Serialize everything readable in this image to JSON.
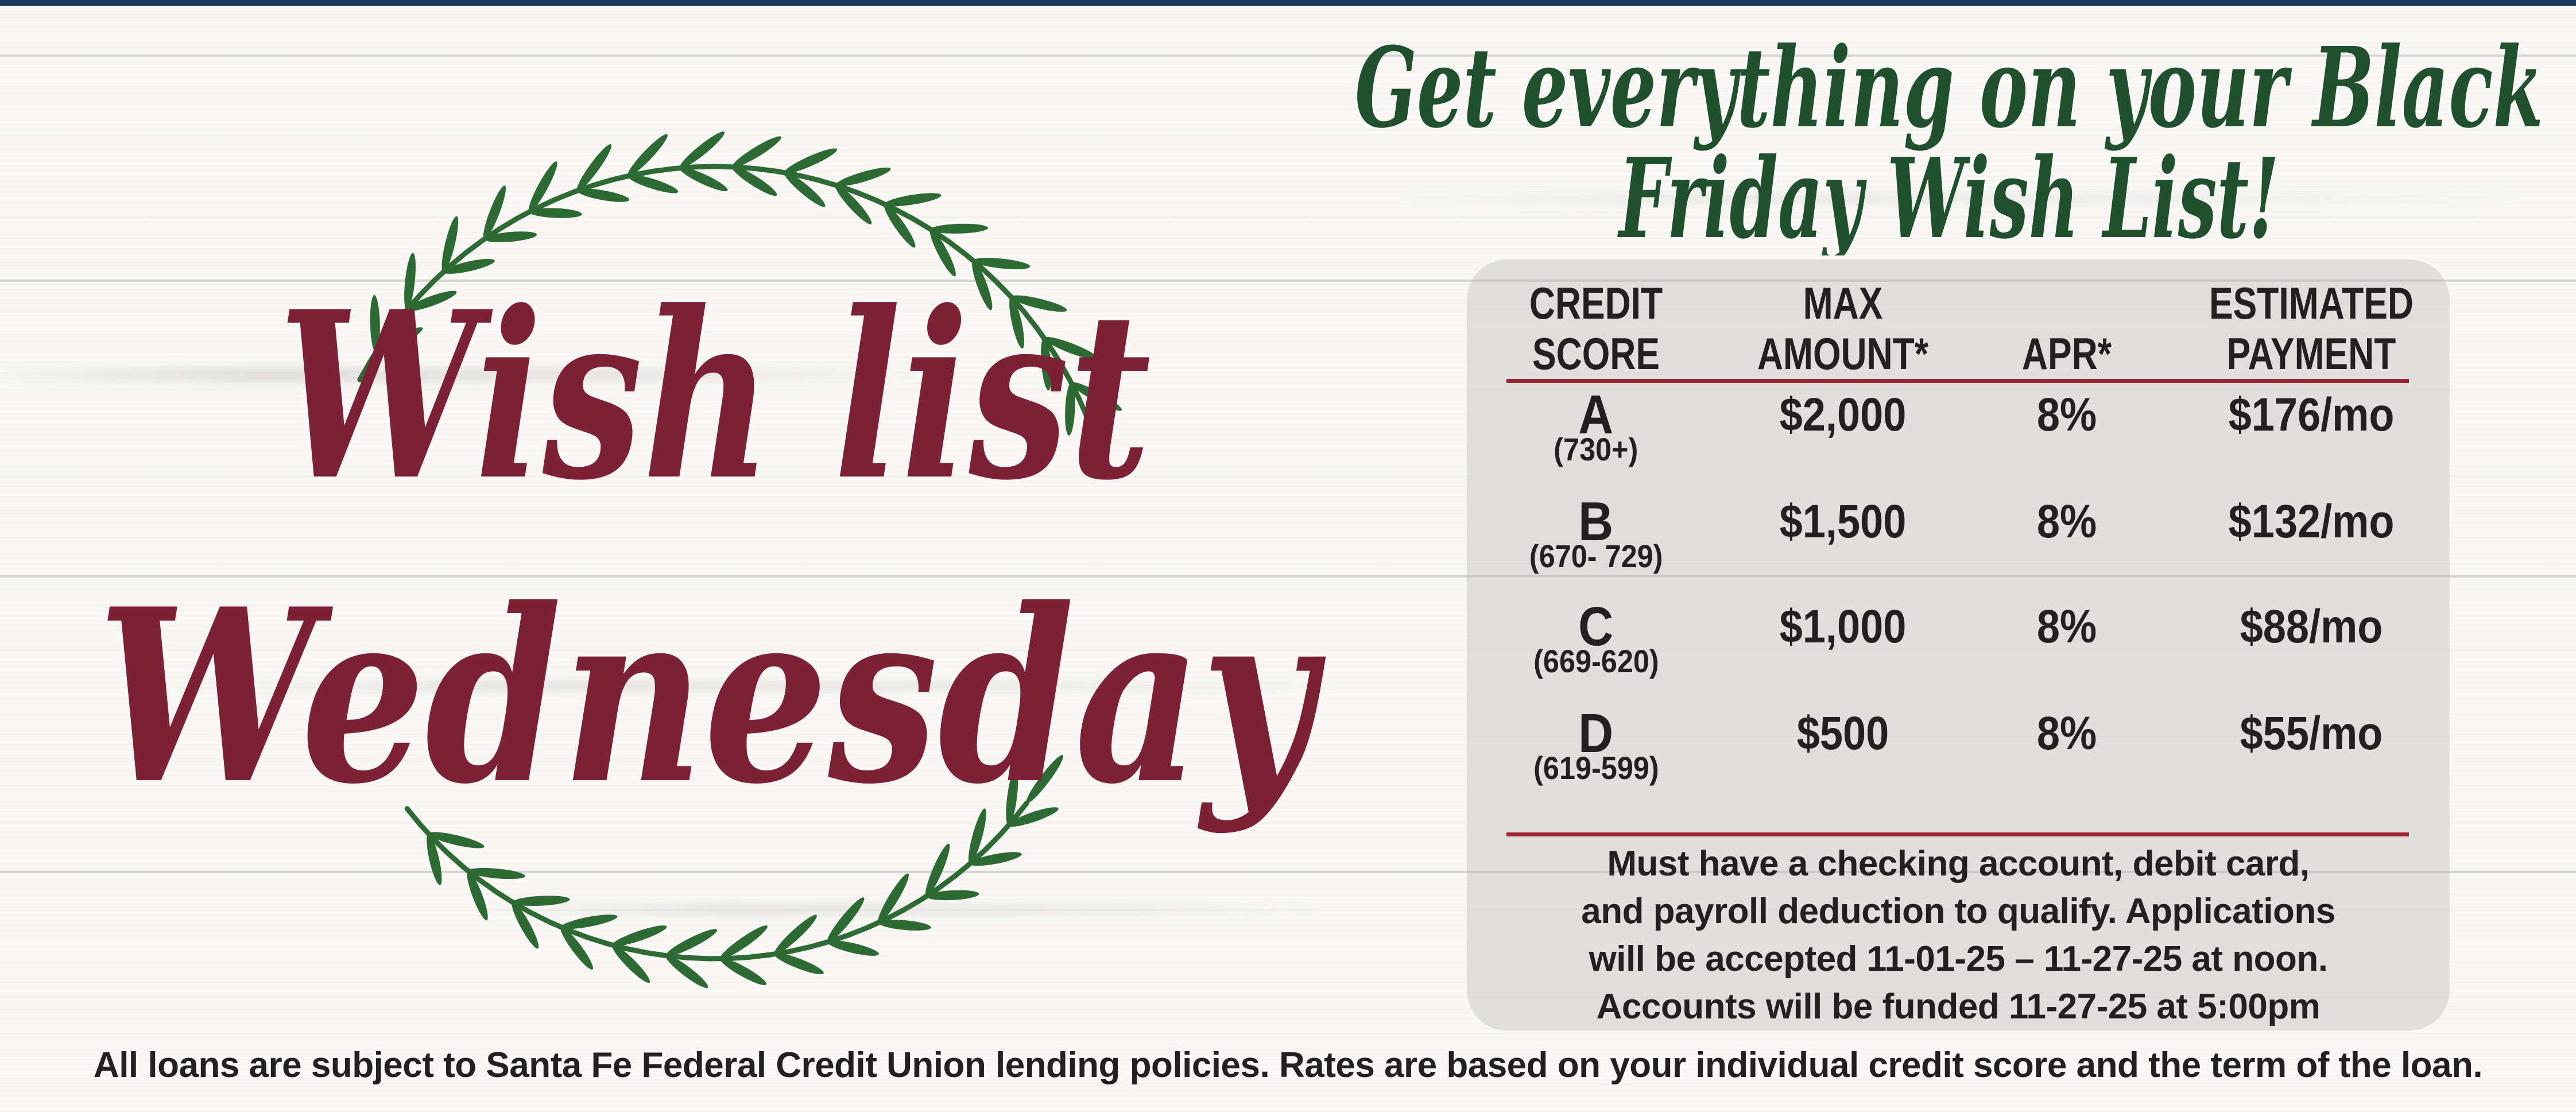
{
  "colors": {
    "top_bar_navy": "#1e3a5a",
    "wish_maroon": "#7d2136",
    "headline_green": "#21502f",
    "wreath_green": "#2e6b34",
    "divider_red": "#9e2430",
    "panel_gray": "#e4e3e1",
    "text_black": "#242021",
    "wood_white": "#f9f8f6"
  },
  "heading": {
    "line1": "Get everything on your Black",
    "line2": "Friday Wish List!"
  },
  "wish_title": {
    "line1": "Wish list",
    "line2": "Wednesday"
  },
  "rates_table": {
    "columns": [
      {
        "line1": "CREDIT",
        "line2": "SCORE"
      },
      {
        "line1": "MAX",
        "line2": "AMOUNT*"
      },
      {
        "line1": "",
        "line2": "APR*"
      },
      {
        "line1": "ESTIMATED",
        "line2": "PAYMENT"
      }
    ],
    "rows": [
      {
        "grade": "A",
        "score_range": "(730+)",
        "max_amount": "$2,000",
        "apr": "8%",
        "payment": "$176/mo"
      },
      {
        "grade": "B",
        "score_range": "(670- 729)",
        "max_amount": "$1,500",
        "apr": "8%",
        "payment": "$132/mo"
      },
      {
        "grade": "C",
        "score_range": "(669-620)",
        "max_amount": "$1,000",
        "apr": "8%",
        "payment": "$88/mo"
      },
      {
        "grade": "D",
        "score_range": "(619-599)",
        "max_amount": "$500",
        "apr": "8%",
        "payment": "$55/mo"
      }
    ],
    "qualification_note": [
      "Must have a checking account, debit card,",
      "and payroll deduction to qualify. Applications",
      "will be accepted 11-01-25 – 11-27-25 at noon.",
      "Accounts will be funded 11-27-25 at 5:00pm"
    ]
  },
  "disclaimer": "All loans are subject to Santa Fe Federal Credit Union lending policies. Rates are based on your individual credit score and the term of the loan."
}
